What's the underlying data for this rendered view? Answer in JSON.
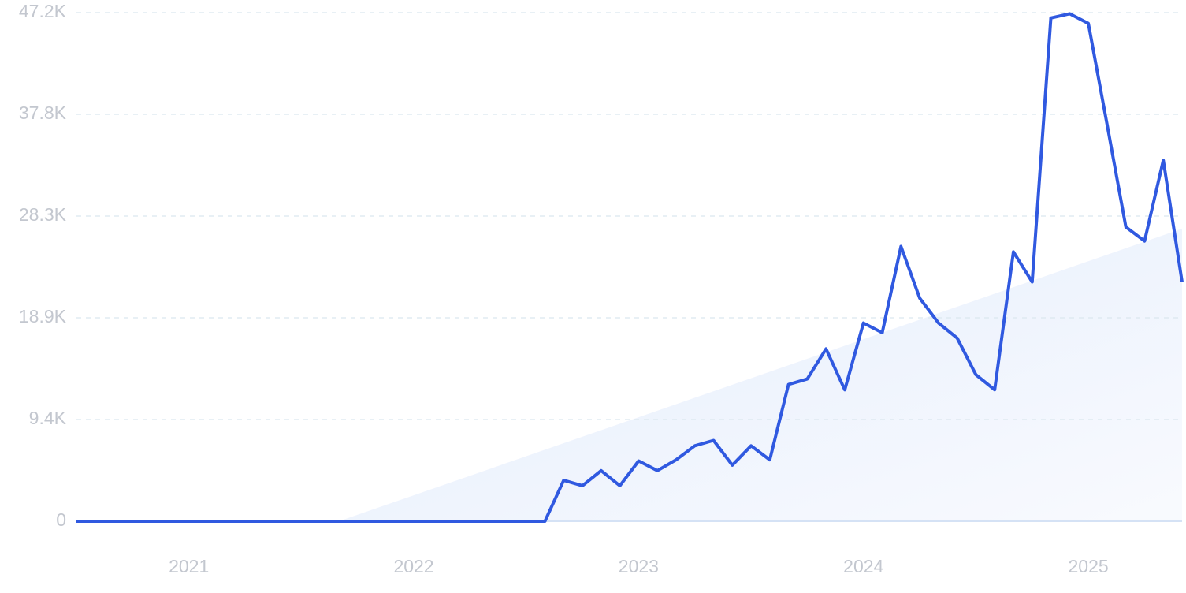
{
  "chart_data": {
    "type": "line",
    "categories": [
      null,
      null,
      null,
      null,
      null,
      null,
      "2021",
      null,
      null,
      null,
      null,
      null,
      null,
      null,
      null,
      null,
      null,
      null,
      "2022",
      null,
      null,
      null,
      null,
      null,
      null,
      null,
      null,
      null,
      null,
      null,
      "2023",
      null,
      null,
      null,
      null,
      null,
      null,
      null,
      null,
      null,
      null,
      null,
      "2024",
      null,
      null,
      null,
      null,
      null,
      null,
      null,
      null,
      null,
      null,
      null,
      "2025",
      null,
      null,
      null,
      null,
      null
    ],
    "values": [
      0,
      0,
      0,
      0,
      0,
      0,
      0,
      0,
      0,
      0,
      0,
      0,
      0,
      0,
      0,
      0,
      0,
      0,
      0,
      0,
      0,
      0,
      0,
      0,
      0,
      0,
      3800,
      3300,
      4700,
      3300,
      5600,
      4700,
      5700,
      7000,
      7500,
      5200,
      7000,
      5700,
      12700,
      13200,
      16000,
      12200,
      18400,
      17500,
      25500,
      20700,
      18400,
      17000,
      13600,
      12200,
      25000,
      22200,
      46700,
      47100,
      46200,
      36800,
      27300,
      26000,
      33500,
      22200
    ],
    "color": "#3059e0",
    "ylim": [
      0,
      47200
    ],
    "yticks": [
      0,
      {
        "value": 9440,
        "label": "9.4K"
      },
      {
        "value": 18880,
        "label": "18.9K"
      },
      {
        "value": 28320,
        "label": "28.3K"
      },
      {
        "value": 37760,
        "label": "37.8K"
      },
      {
        "value": 47200,
        "label": "47.2K"
      }
    ],
    "grid": true
  }
}
